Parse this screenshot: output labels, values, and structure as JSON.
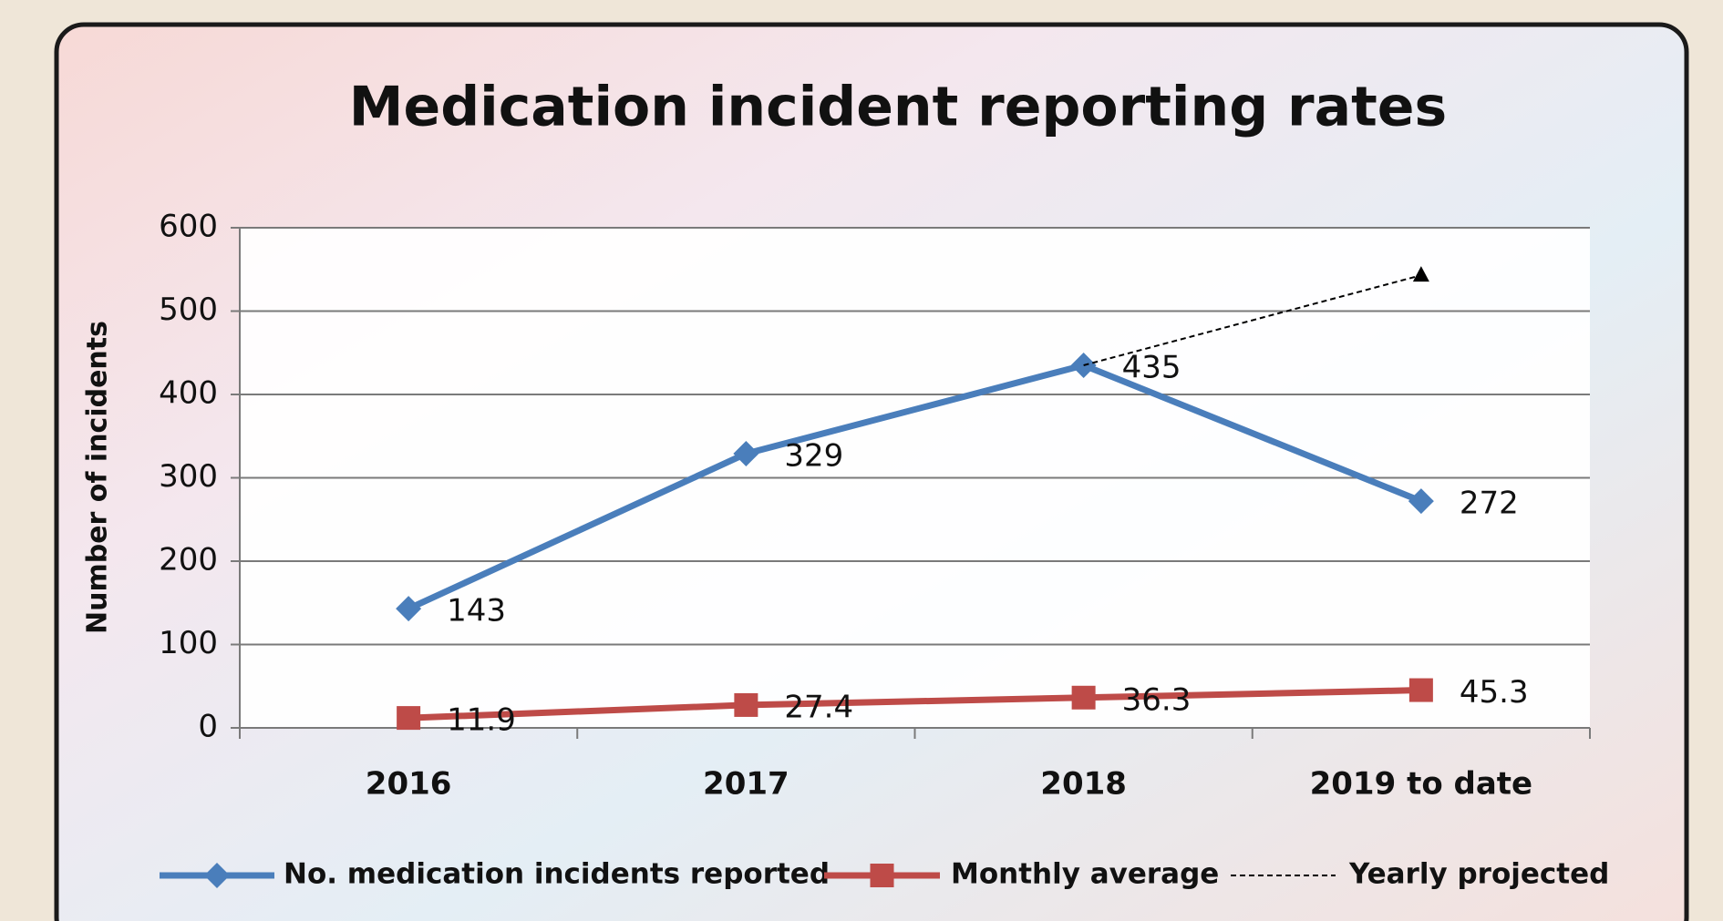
{
  "chart_data": {
    "type": "line",
    "title": "Medication incident reporting rates",
    "y_label": "Number of incidents",
    "categories": [
      "2016",
      "2017",
      "2018",
      "2019 to date"
    ],
    "series": [
      {
        "name": "No. medication incidents reported",
        "color": "#4a7ebb",
        "marker": "diamond",
        "line_style": "solid",
        "show_values": true,
        "values": [
          143,
          329,
          435,
          272
        ]
      },
      {
        "name": "Monthly average",
        "color": "#be4b48",
        "marker": "square",
        "line_style": "solid",
        "show_values": true,
        "values": [
          11.9,
          27.4,
          36.3,
          45.3
        ]
      },
      {
        "name": "Yearly projected",
        "color": "#000000",
        "marker": "triangle",
        "line_style": "dashed",
        "show_values": false,
        "values": [
          null,
          null,
          435,
          543
        ]
      }
    ],
    "ylim": [
      0,
      600
    ],
    "yticks": [
      0,
      100,
      200,
      300,
      400,
      500,
      600
    ],
    "grid": true,
    "legend": "bottom"
  }
}
